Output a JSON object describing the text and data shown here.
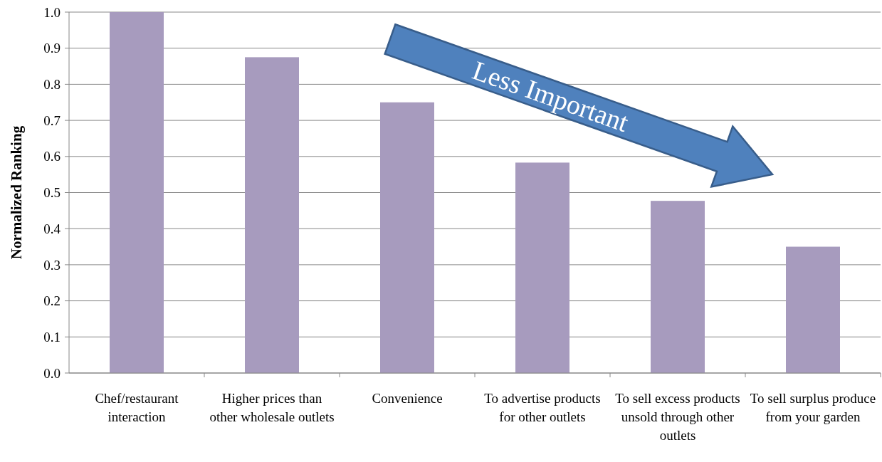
{
  "chart_data": {
    "type": "bar",
    "ylabel": "Normalized Ranking",
    "categories": [
      "Chef/restaurant interaction",
      "Higher prices than other wholesale outlets",
      "Convenience",
      "To advertise products for other outlets",
      "To sell excess products unsold through other outlets",
      "To sell surplus produce from your garden"
    ],
    "values": [
      1.0,
      0.875,
      0.75,
      0.583,
      0.477,
      0.35
    ],
    "color": "#a79bbe",
    "ylim": [
      0,
      1
    ],
    "yticks": [
      {
        "value": 0,
        "label": "0.0"
      },
      {
        "value": 0.1,
        "label": "0.1"
      },
      {
        "value": 0.2,
        "label": "0.2"
      },
      {
        "value": 0.3,
        "label": "0.3"
      },
      {
        "value": 0.4,
        "label": "0.4"
      },
      {
        "value": 0.5,
        "label": "0.5"
      },
      {
        "value": 0.6,
        "label": "0.6"
      },
      {
        "value": 0.7,
        "label": "0.7"
      },
      {
        "value": 0.8,
        "label": "0.8"
      },
      {
        "value": 0.9,
        "label": "0.9"
      },
      {
        "value": 1,
        "label": "1.0"
      }
    ],
    "grid": "y",
    "annotations": [
      "Less Important"
    ]
  }
}
